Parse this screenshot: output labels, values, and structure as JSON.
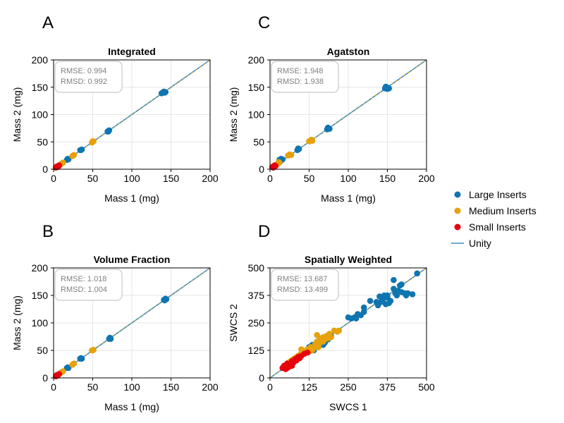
{
  "colors": {
    "large": "#0f75b0",
    "medium": "#e6a10c",
    "small": "#e8000b",
    "unity": "#3a8fc4",
    "unity_dash": "#e6a10c",
    "grid": "#e6e6e6",
    "box_border": "#c8c8c8",
    "stats_text": "#808080"
  },
  "legend": {
    "items": [
      {
        "label": "Large Inserts",
        "kind": "marker",
        "color": "#0f75b0"
      },
      {
        "label": "Medium Inserts",
        "kind": "marker",
        "color": "#e6a10c"
      },
      {
        "label": "Small Inserts",
        "kind": "marker",
        "color": "#e8000b"
      },
      {
        "label": "Unity",
        "kind": "line",
        "color": "#3a8fc4"
      }
    ]
  },
  "chart_data": [
    {
      "type": "scatter",
      "panel_label": "A",
      "title": "Integrated",
      "xlabel": "Mass 1 (mg)",
      "ylabel": "Mass 2 (mg)",
      "xlim": [
        0,
        200
      ],
      "ylim": [
        0,
        200
      ],
      "xticks": [
        0,
        50,
        100,
        150,
        200
      ],
      "yticks": [
        0,
        50,
        100,
        150,
        200
      ],
      "stats": {
        "rmse": "RMSE: 0.994",
        "rmsd": "RMSD: 0.992"
      },
      "grid": true,
      "series": [
        {
          "name": "Large Inserts",
          "points": [
            [
              17,
              17
            ],
            [
              18,
              19
            ],
            [
              19,
              18
            ],
            [
              35,
              35
            ],
            [
              36,
              36
            ],
            [
              34,
              35
            ],
            [
              69,
              69
            ],
            [
              70,
              70
            ],
            [
              71,
              71
            ],
            [
              70,
              69
            ],
            [
              138,
              139
            ],
            [
              140,
              141
            ],
            [
              142,
              140
            ],
            [
              141,
              142
            ],
            [
              143,
              141
            ]
          ]
        },
        {
          "name": "Medium Inserts",
          "points": [
            [
              9,
              9
            ],
            [
              10,
              10
            ],
            [
              11,
              11
            ],
            [
              12,
              12
            ],
            [
              24,
              24
            ],
            [
              25,
              25
            ],
            [
              26,
              26
            ],
            [
              49,
              49
            ],
            [
              50,
              50
            ],
            [
              51,
              51
            ],
            [
              50,
              51
            ]
          ]
        },
        {
          "name": "Small Inserts",
          "points": [
            [
              3,
              3
            ],
            [
              4,
              4
            ],
            [
              5,
              5
            ],
            [
              6,
              6
            ],
            [
              7,
              7
            ],
            [
              5,
              4
            ],
            [
              4,
              5
            ],
            [
              6,
              5
            ]
          ]
        }
      ]
    },
    {
      "type": "scatter",
      "panel_label": "C",
      "title": "Agatston",
      "xlabel": "Mass 1 (mg)",
      "ylabel": "Mass 2 (mg)",
      "xlim": [
        0,
        200
      ],
      "ylim": [
        0,
        200
      ],
      "xticks": [
        0,
        50,
        100,
        150,
        200
      ],
      "yticks": [
        0,
        50,
        100,
        150,
        200
      ],
      "stats": {
        "rmse": "RMSE: 1.948",
        "rmsd": "RMSD: 1.938"
      },
      "grid": true,
      "series": [
        {
          "name": "Large Inserts",
          "points": [
            [
              12,
              17
            ],
            [
              14,
              19
            ],
            [
              16,
              18
            ],
            [
              13,
              14
            ],
            [
              35,
              35
            ],
            [
              37,
              37
            ],
            [
              36,
              38
            ],
            [
              73,
              73
            ],
            [
              75,
              75
            ],
            [
              74,
              76
            ],
            [
              76,
              74
            ],
            [
              147,
              148
            ],
            [
              149,
              150
            ],
            [
              150,
              147
            ],
            [
              148,
              151
            ],
            [
              151,
              149
            ],
            [
              152,
              148
            ]
          ]
        },
        {
          "name": "Medium Inserts",
          "points": [
            [
              10,
              10
            ],
            [
              12,
              12
            ],
            [
              11,
              13
            ],
            [
              23,
              25
            ],
            [
              25,
              27
            ],
            [
              27,
              26
            ],
            [
              50,
              51
            ],
            [
              52,
              53
            ],
            [
              54,
              52
            ],
            [
              53,
              54
            ]
          ]
        },
        {
          "name": "Small Inserts",
          "points": [
            [
              3,
              4
            ],
            [
              4,
              5
            ],
            [
              5,
              6
            ],
            [
              6,
              5
            ],
            [
              7,
              6
            ],
            [
              4,
              3
            ],
            [
              5,
              4
            ],
            [
              6,
              7
            ]
          ]
        }
      ]
    },
    {
      "type": "scatter",
      "panel_label": "B",
      "title": "Volume Fraction",
      "xlabel": "Mass 1 (mg)",
      "ylabel": "Mass 2 (mg)",
      "xlim": [
        0,
        200
      ],
      "ylim": [
        0,
        200
      ],
      "xticks": [
        0,
        50,
        100,
        150,
        200
      ],
      "yticks": [
        0,
        50,
        100,
        150,
        200
      ],
      "stats": {
        "rmse": "RMSE: 1.018",
        "rmsd": "RMSD: 1.004"
      },
      "grid": true,
      "series": [
        {
          "name": "Large Inserts",
          "points": [
            [
              17,
              18
            ],
            [
              18,
              19
            ],
            [
              19,
              18
            ],
            [
              35,
              36
            ],
            [
              36,
              35
            ],
            [
              34,
              35
            ],
            [
              71,
              71
            ],
            [
              72,
              72
            ],
            [
              73,
              71
            ],
            [
              72,
              73
            ],
            [
              141,
              142
            ],
            [
              143,
              144
            ],
            [
              142,
              141
            ],
            [
              144,
              143
            ]
          ]
        },
        {
          "name": "Medium Inserts",
          "points": [
            [
              9,
              9
            ],
            [
              10,
              10
            ],
            [
              11,
              11
            ],
            [
              12,
              12
            ],
            [
              24,
              24
            ],
            [
              25,
              25
            ],
            [
              26,
              26
            ],
            [
              50,
              50
            ],
            [
              51,
              51
            ],
            [
              49,
              50
            ]
          ]
        },
        {
          "name": "Small Inserts",
          "points": [
            [
              3,
              3
            ],
            [
              4,
              4
            ],
            [
              5,
              5
            ],
            [
              6,
              6
            ],
            [
              7,
              7
            ],
            [
              5,
              4
            ],
            [
              4,
              5
            ]
          ]
        }
      ]
    },
    {
      "type": "scatter",
      "panel_label": "D",
      "title": "Spatially Weighted",
      "xlabel": "SWCS 1",
      "ylabel": "SWCS 2",
      "xlim": [
        0,
        500
      ],
      "ylim": [
        0,
        500
      ],
      "xticks": [
        0,
        125,
        250,
        375,
        500
      ],
      "yticks": [
        0,
        125,
        250,
        375,
        500
      ],
      "stats": {
        "rmse": "RMSE: 13.687",
        "rmsd": "RMSD: 13.499"
      },
      "grid": true,
      "series": [
        {
          "name": "Large Inserts",
          "points": [
            [
              125,
              140
            ],
            [
              135,
              150
            ],
            [
              140,
              125
            ],
            [
              150,
              155
            ],
            [
              160,
              165
            ],
            [
              170,
              150
            ],
            [
              175,
              160
            ],
            [
              185,
              175
            ],
            [
              195,
              190
            ],
            [
              250,
              275
            ],
            [
              260,
              270
            ],
            [
              270,
              275
            ],
            [
              280,
              290
            ],
            [
              290,
              285
            ],
            [
              300,
              300
            ],
            [
              275,
              270
            ],
            [
              300,
              320
            ],
            [
              320,
              350
            ],
            [
              340,
              345
            ],
            [
              345,
              330
            ],
            [
              350,
              370
            ],
            [
              355,
              345
            ],
            [
              360,
              355
            ],
            [
              365,
              375
            ],
            [
              370,
              335
            ],
            [
              375,
              365
            ],
            [
              380,
              340
            ],
            [
              385,
              350
            ],
            [
              395,
              405
            ],
            [
              400,
              385
            ],
            [
              405,
              375
            ],
            [
              410,
              395
            ],
            [
              415,
              420
            ],
            [
              420,
              390
            ],
            [
              430,
              385
            ],
            [
              435,
              375
            ],
            [
              440,
              385
            ],
            [
              455,
              380
            ],
            [
              395,
              445
            ],
            [
              420,
              425
            ],
            [
              375,
              375
            ],
            [
              470,
              475
            ]
          ]
        },
        {
          "name": "Medium Inserts",
          "points": [
            [
              55,
              65
            ],
            [
              60,
              70
            ],
            [
              65,
              75
            ],
            [
              70,
              80
            ],
            [
              75,
              85
            ],
            [
              80,
              90
            ],
            [
              85,
              95
            ],
            [
              90,
              100
            ],
            [
              95,
              105
            ],
            [
              100,
              110
            ],
            [
              105,
              115
            ],
            [
              110,
              120
            ],
            [
              115,
              125
            ],
            [
              120,
              130
            ],
            [
              125,
              120
            ],
            [
              130,
              140
            ],
            [
              140,
              135
            ],
            [
              145,
              155
            ],
            [
              150,
              165
            ],
            [
              155,
              140
            ],
            [
              160,
              180
            ],
            [
              165,
              170
            ],
            [
              170,
              185
            ],
            [
              175,
              175
            ],
            [
              180,
              190
            ],
            [
              185,
              180
            ],
            [
              190,
              200
            ],
            [
              195,
              185
            ],
            [
              205,
              215
            ],
            [
              215,
              210
            ],
            [
              220,
              215
            ],
            [
              150,
              195
            ],
            [
              160,
              160
            ],
            [
              135,
              125
            ],
            [
              100,
              130
            ],
            [
              170,
              165
            ]
          ]
        },
        {
          "name": "Small Inserts",
          "points": [
            [
              40,
              45
            ],
            [
              45,
              50
            ],
            [
              50,
              40
            ],
            [
              50,
              55
            ],
            [
              55,
              45
            ],
            [
              60,
              60
            ],
            [
              60,
              50
            ],
            [
              65,
              65
            ],
            [
              70,
              55
            ],
            [
              70,
              75
            ],
            [
              75,
              70
            ],
            [
              80,
              85
            ],
            [
              85,
              80
            ],
            [
              90,
              95
            ],
            [
              95,
              90
            ],
            [
              100,
              100
            ],
            [
              110,
              110
            ],
            [
              120,
              115
            ],
            [
              45,
              55
            ],
            [
              55,
              65
            ]
          ]
        }
      ]
    }
  ]
}
